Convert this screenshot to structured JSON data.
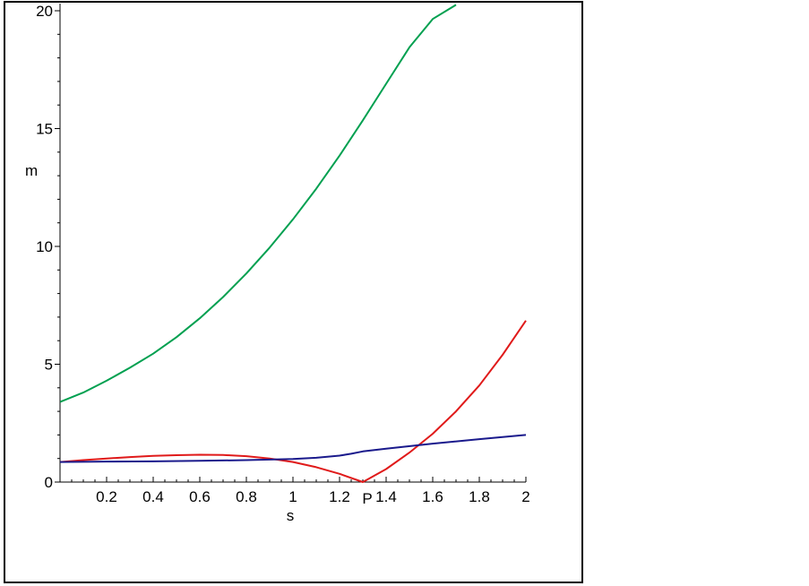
{
  "chart_data": {
    "type": "line",
    "xlabel": "s",
    "ylabel": "m",
    "xlim": [
      0,
      2
    ],
    "ylim": [
      0,
      20
    ],
    "x_ticks": [
      "0.2",
      "0.4",
      "0.6",
      "0.8",
      "1",
      "1.2",
      "1.4",
      "1.6",
      "1.8",
      "2"
    ],
    "x_tick_values": [
      0.2,
      0.4,
      0.6,
      0.8,
      1.0,
      1.2,
      1.4,
      1.6,
      1.8,
      2.0
    ],
    "y_ticks": [
      "0",
      "5",
      "10",
      "15",
      "20"
    ],
    "y_tick_values": [
      0,
      5,
      10,
      15,
      20
    ],
    "annotations": [
      {
        "text": "P",
        "x": 1.3,
        "y": 0
      }
    ],
    "grid": false,
    "legend": "none",
    "series": [
      {
        "color": "#00a050",
        "x": [
          0,
          0.1,
          0.2,
          0.3,
          0.4,
          0.5,
          0.6,
          0.7,
          0.8,
          0.9,
          1.0,
          1.1,
          1.2,
          1.3,
          1.4,
          1.5,
          1.6,
          1.7
        ],
        "y": [
          3.4,
          3.8,
          4.3,
          4.85,
          5.45,
          6.15,
          6.95,
          7.85,
          8.85,
          9.95,
          11.15,
          12.45,
          13.85,
          15.35,
          16.9,
          18.45,
          19.65,
          20.25
        ]
      },
      {
        "color": "#e01a1a",
        "x": [
          0,
          0.1,
          0.2,
          0.3,
          0.4,
          0.5,
          0.6,
          0.7,
          0.8,
          0.9,
          1.0,
          1.1,
          1.2,
          1.3,
          1.4,
          1.5,
          1.6,
          1.7,
          1.8,
          1.9,
          2.0
        ],
        "y": [
          0.85,
          0.93,
          1.0,
          1.06,
          1.11,
          1.14,
          1.16,
          1.15,
          1.1,
          1.0,
          0.85,
          0.63,
          0.35,
          0.0,
          0.55,
          1.25,
          2.05,
          3.0,
          4.1,
          5.4,
          6.85
        ]
      },
      {
        "color": "#1a1a8c",
        "x": [
          0,
          0.2,
          0.4,
          0.6,
          0.8,
          1.0,
          1.1,
          1.2,
          1.25,
          1.3,
          1.4,
          1.6,
          1.8,
          2.0
        ],
        "y": [
          0.85,
          0.87,
          0.88,
          0.9,
          0.93,
          0.98,
          1.03,
          1.12,
          1.2,
          1.3,
          1.42,
          1.63,
          1.82,
          2.0
        ]
      }
    ]
  }
}
